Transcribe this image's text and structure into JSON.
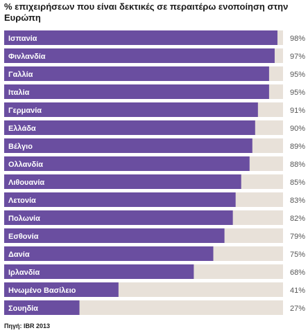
{
  "title": "% επιχειρήσεων που είναι δεκτικές σε περαιτέρω ενοποίηση στην Ευρώπη",
  "source": "Πηγή: IBR 2013",
  "colors": {
    "bar": "#6a4ea0",
    "track": "#e8e1d9",
    "label": "#ffffff",
    "value": "#555555"
  },
  "chart_data": {
    "type": "bar",
    "orientation": "horizontal",
    "value_suffix": "%",
    "xlim": [
      0,
      100
    ],
    "categories": [
      "Ισπανία",
      "Φινλανδία",
      "Γαλλία",
      "Ιταλία",
      "Γερμανία",
      "Ελλάδα",
      "Βέλγιο",
      "Ολλανδία",
      "Λιθουανία",
      "Λετονία",
      "Πολωνία",
      "Εσθονία",
      "Δανία",
      "Ιρλανδία",
      "Ηνωμένο Βασίλειο",
      "Σουηδία"
    ],
    "values": [
      98,
      97,
      95,
      95,
      91,
      90,
      89,
      88,
      85,
      83,
      82,
      79,
      75,
      68,
      41,
      27
    ]
  }
}
